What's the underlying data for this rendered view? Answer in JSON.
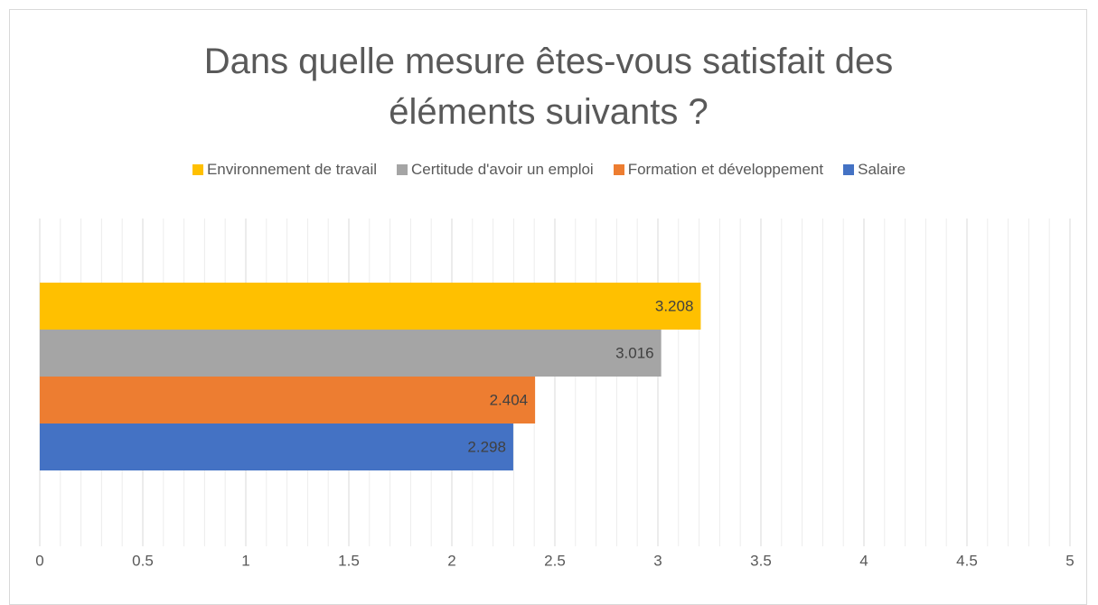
{
  "chart_data": {
    "type": "hbar",
    "title": "Dans quelle mesure êtes-vous satisfait des éléments suivants ?",
    "series": [
      {
        "name": "Environnement de travail",
        "color": "#FFC000",
        "values": [
          3.208
        ]
      },
      {
        "name": "Certitude d'avoir un emploi",
        "color": "#A5A5A5",
        "values": [
          3.016
        ]
      },
      {
        "name": "Formation et développement",
        "color": "#ED7D31",
        "values": [
          2.404
        ]
      },
      {
        "name": "Salaire",
        "color": "#4472C4",
        "values": [
          2.298
        ]
      }
    ],
    "xlim": [
      0,
      5
    ],
    "xticks": [
      0,
      0.5,
      1,
      1.5,
      2,
      2.5,
      3,
      3.5,
      4,
      4.5,
      5
    ],
    "grid": true,
    "minor_grid": true,
    "legend": "top",
    "data_labels": true
  }
}
